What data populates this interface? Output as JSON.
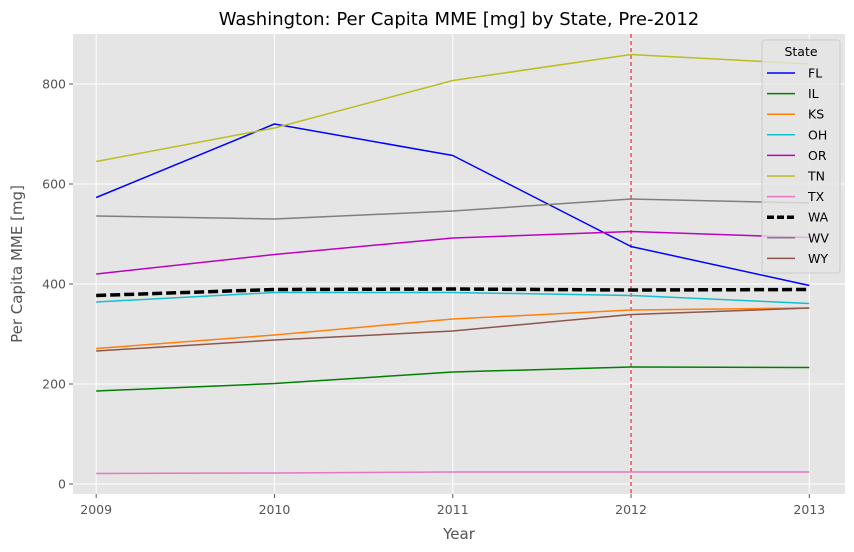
{
  "chart_data": {
    "type": "line",
    "title": "Washington: Per Capita MME [mg] by State, Pre-2012",
    "xlabel": "Year",
    "ylabel": "Per Capita MME [mg]",
    "x": [
      2009,
      2010,
      2011,
      2012,
      2013
    ],
    "xlim": [
      2008.87,
      2013.2
    ],
    "ylim": [
      -20,
      900
    ],
    "yticks": [
      0,
      200,
      400,
      600,
      800
    ],
    "grid": true,
    "background": "#e5e5e5",
    "legend": {
      "title": "State",
      "position": "top-right"
    },
    "reference_line": {
      "x": 2012,
      "color": "#ff0000",
      "style": "dashed"
    },
    "series": [
      {
        "name": "FL",
        "color": "#0000ff",
        "width": 1.5,
        "dashed": false,
        "values": [
          573,
          720,
          657,
          475,
          397
        ]
      },
      {
        "name": "IL",
        "color": "#008000",
        "width": 1.5,
        "dashed": false,
        "values": [
          186,
          201,
          224,
          234,
          233
        ]
      },
      {
        "name": "KS",
        "color": "#ff7f0e",
        "width": 1.5,
        "dashed": false,
        "values": [
          271,
          298,
          330,
          348,
          352
        ]
      },
      {
        "name": "OH",
        "color": "#17becf",
        "width": 1.5,
        "dashed": false,
        "values": [
          364,
          383,
          383,
          377,
          361
        ]
      },
      {
        "name": "OR",
        "color": "#bf00bf",
        "width": 1.5,
        "dashed": false,
        "values": [
          420,
          459,
          492,
          505,
          493
        ]
      },
      {
        "name": "TN",
        "color": "#bcbd22",
        "width": 1.5,
        "dashed": false,
        "values": [
          645,
          712,
          807,
          859,
          840
        ]
      },
      {
        "name": "TX",
        "color": "#e377c2",
        "width": 1.5,
        "dashed": false,
        "values": [
          21,
          22,
          24,
          24,
          24
        ]
      },
      {
        "name": "WA",
        "color": "#000000",
        "width": 3.5,
        "dashed": true,
        "values": [
          377,
          389,
          390,
          388,
          389
        ]
      },
      {
        "name": "WV",
        "color": "#7f7f7f",
        "width": 1.5,
        "dashed": false,
        "values": [
          536,
          530,
          546,
          570,
          562
        ]
      },
      {
        "name": "WY",
        "color": "#8c564b",
        "width": 1.5,
        "dashed": false,
        "values": [
          266,
          288,
          306,
          339,
          352
        ]
      }
    ]
  }
}
